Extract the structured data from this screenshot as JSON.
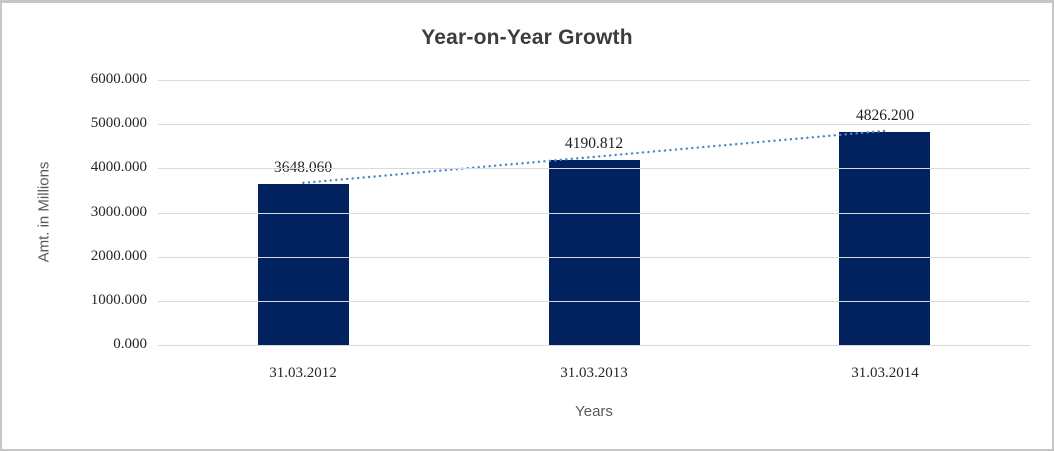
{
  "frame": {
    "background": "#ffffff",
    "border_color": "#c6c6c6"
  },
  "chart_data": {
    "type": "bar",
    "title": "Year-on-Year Growth",
    "xlabel": "Years",
    "ylabel": "Amt. in Millions",
    "categories": [
      "31.03.2012",
      "31.03.2013",
      "31.03.2014"
    ],
    "values": [
      3648.06,
      4190.812,
      4826.2
    ],
    "data_labels": [
      "3648.060",
      "4190.812",
      "4826.200"
    ],
    "ylim": [
      0,
      6000
    ],
    "ytick_step": 1000,
    "yticks": [
      "6000.000",
      "5000.000",
      "4000.000",
      "3000.000",
      "2000.000",
      "1000.000",
      "0.000"
    ],
    "grid": true,
    "legend": false,
    "bar_color": "#02225f",
    "trendline": {
      "style": "dotted",
      "color": "#5186c9",
      "from_value": 3648.06,
      "to_value": 4826.2
    },
    "title_color": "#3d3d3d",
    "gridline_color": "#d9d9d9",
    "axis_title_color": "#595959",
    "tick_label_color": "#262626"
  }
}
